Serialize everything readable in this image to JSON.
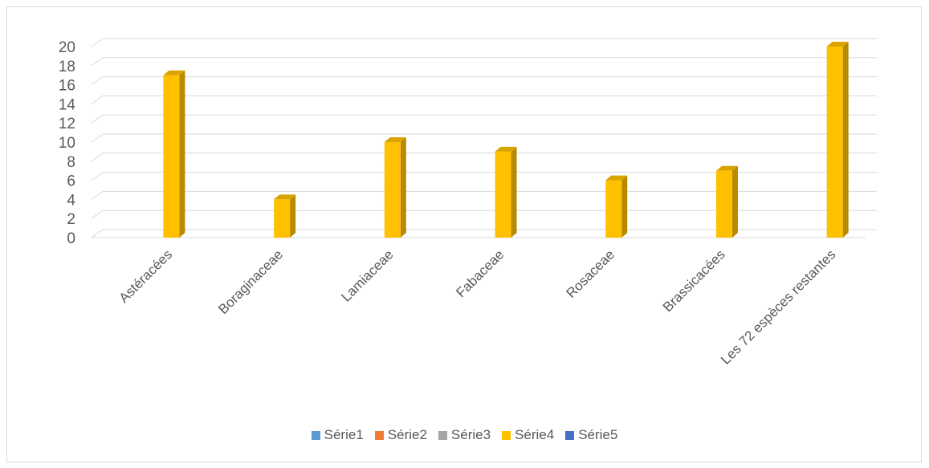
{
  "chart_data": {
    "type": "bar",
    "categories": [
      "Astéracées",
      "Boraginaceae",
      "Lamiaceae",
      "Fabaceae",
      "Rosaceae",
      "Brassicacées",
      "Les 72 espèces restantes"
    ],
    "series": [
      {
        "name": "Série1",
        "color": "#5b9bd5",
        "values": [
          null,
          null,
          null,
          null,
          null,
          null,
          null
        ]
      },
      {
        "name": "Série2",
        "color": "#ed7d31",
        "values": [
          null,
          null,
          null,
          null,
          null,
          null,
          null
        ]
      },
      {
        "name": "Série3",
        "color": "#a5a5a5",
        "values": [
          null,
          null,
          null,
          null,
          null,
          null,
          null
        ]
      },
      {
        "name": "Série4",
        "color": "#ffc000",
        "values": [
          17,
          4,
          10,
          9,
          6,
          7,
          20
        ]
      },
      {
        "name": "Série5",
        "color": "#4472c4",
        "values": [
          null,
          null,
          null,
          null,
          null,
          null,
          null
        ]
      }
    ],
    "yticks": [
      0,
      2,
      4,
      6,
      8,
      10,
      12,
      14,
      16,
      18,
      20
    ],
    "ylim": [
      0,
      20
    ],
    "title": "",
    "xlabel": "",
    "ylabel": "",
    "grid": true,
    "legend_position": "bottom",
    "style": "3d-column"
  }
}
